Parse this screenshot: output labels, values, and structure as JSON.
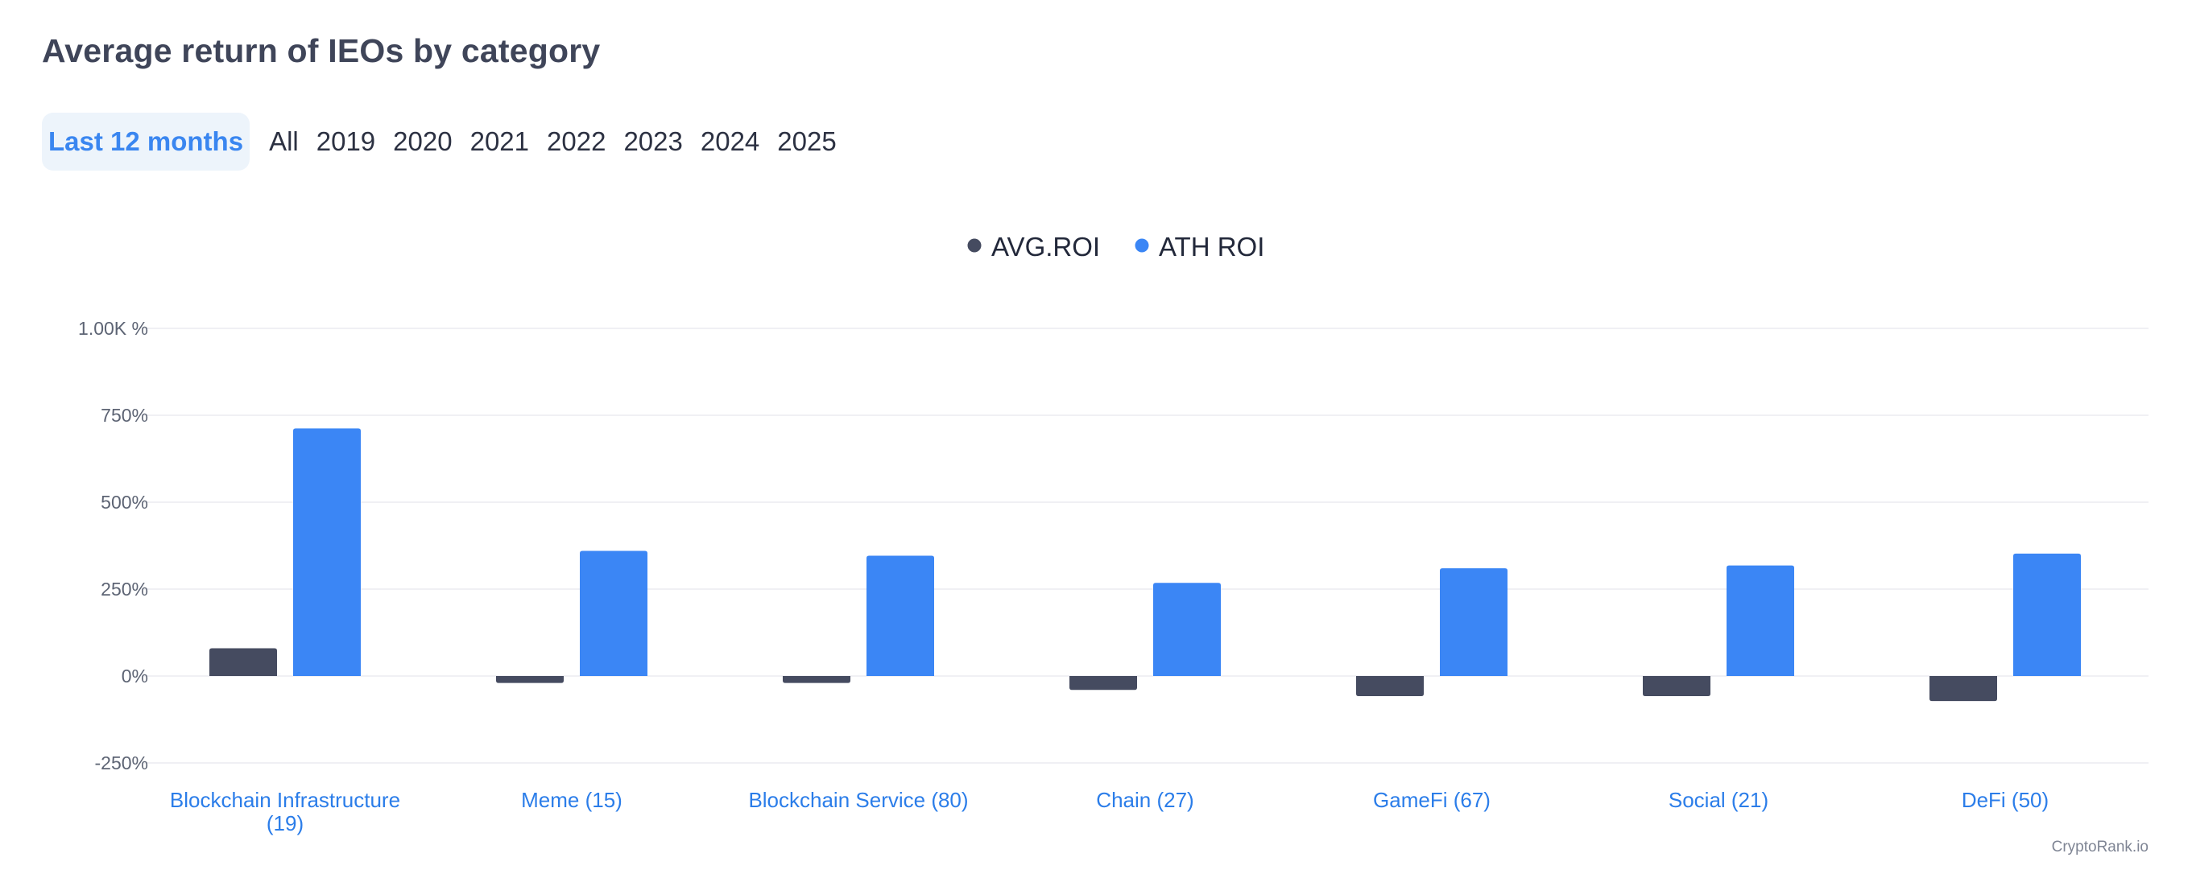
{
  "header": {
    "title": "Average return of IEOs by category"
  },
  "tabs": [
    {
      "label": "Last 12 months",
      "active": true
    },
    {
      "label": "All",
      "active": false
    },
    {
      "label": "2019",
      "active": false
    },
    {
      "label": "2020",
      "active": false
    },
    {
      "label": "2021",
      "active": false
    },
    {
      "label": "2022",
      "active": false
    },
    {
      "label": "2023",
      "active": false
    },
    {
      "label": "2024",
      "active": false
    },
    {
      "label": "2025",
      "active": false
    }
  ],
  "credit": "CryptoRank.io",
  "colors": {
    "avg": "#454b60",
    "ath": "#3b86f5",
    "category_label": "#2b7de9",
    "grid": "#ececf0"
  },
  "chart_data": {
    "type": "bar",
    "categories": [
      [
        "Blockchain Infrastructure",
        "(19)"
      ],
      [
        "Meme (15)"
      ],
      [
        "Blockchain Service (80)"
      ],
      [
        "Chain (27)"
      ],
      [
        "GameFi (67)"
      ],
      [
        "Social (21)"
      ],
      [
        "DeFi (50)"
      ]
    ],
    "series": [
      {
        "name": "AVG.ROI",
        "values": [
          80,
          -20,
          -20,
          -40,
          -58,
          -58,
          -72
        ]
      },
      {
        "name": "ATH ROI",
        "values": [
          712,
          360,
          346,
          268,
          310,
          318,
          352
        ]
      }
    ],
    "ylim": [
      -250,
      1000
    ],
    "yticks": [
      {
        "value": 1000,
        "label": "1.00K %"
      },
      {
        "value": 750,
        "label": "750%"
      },
      {
        "value": 500,
        "label": "500%"
      },
      {
        "value": 250,
        "label": "250%"
      },
      {
        "value": 0,
        "label": "0%"
      },
      {
        "value": -250,
        "label": "-250%"
      }
    ],
    "legend_position": "top-center",
    "grid": true
  }
}
